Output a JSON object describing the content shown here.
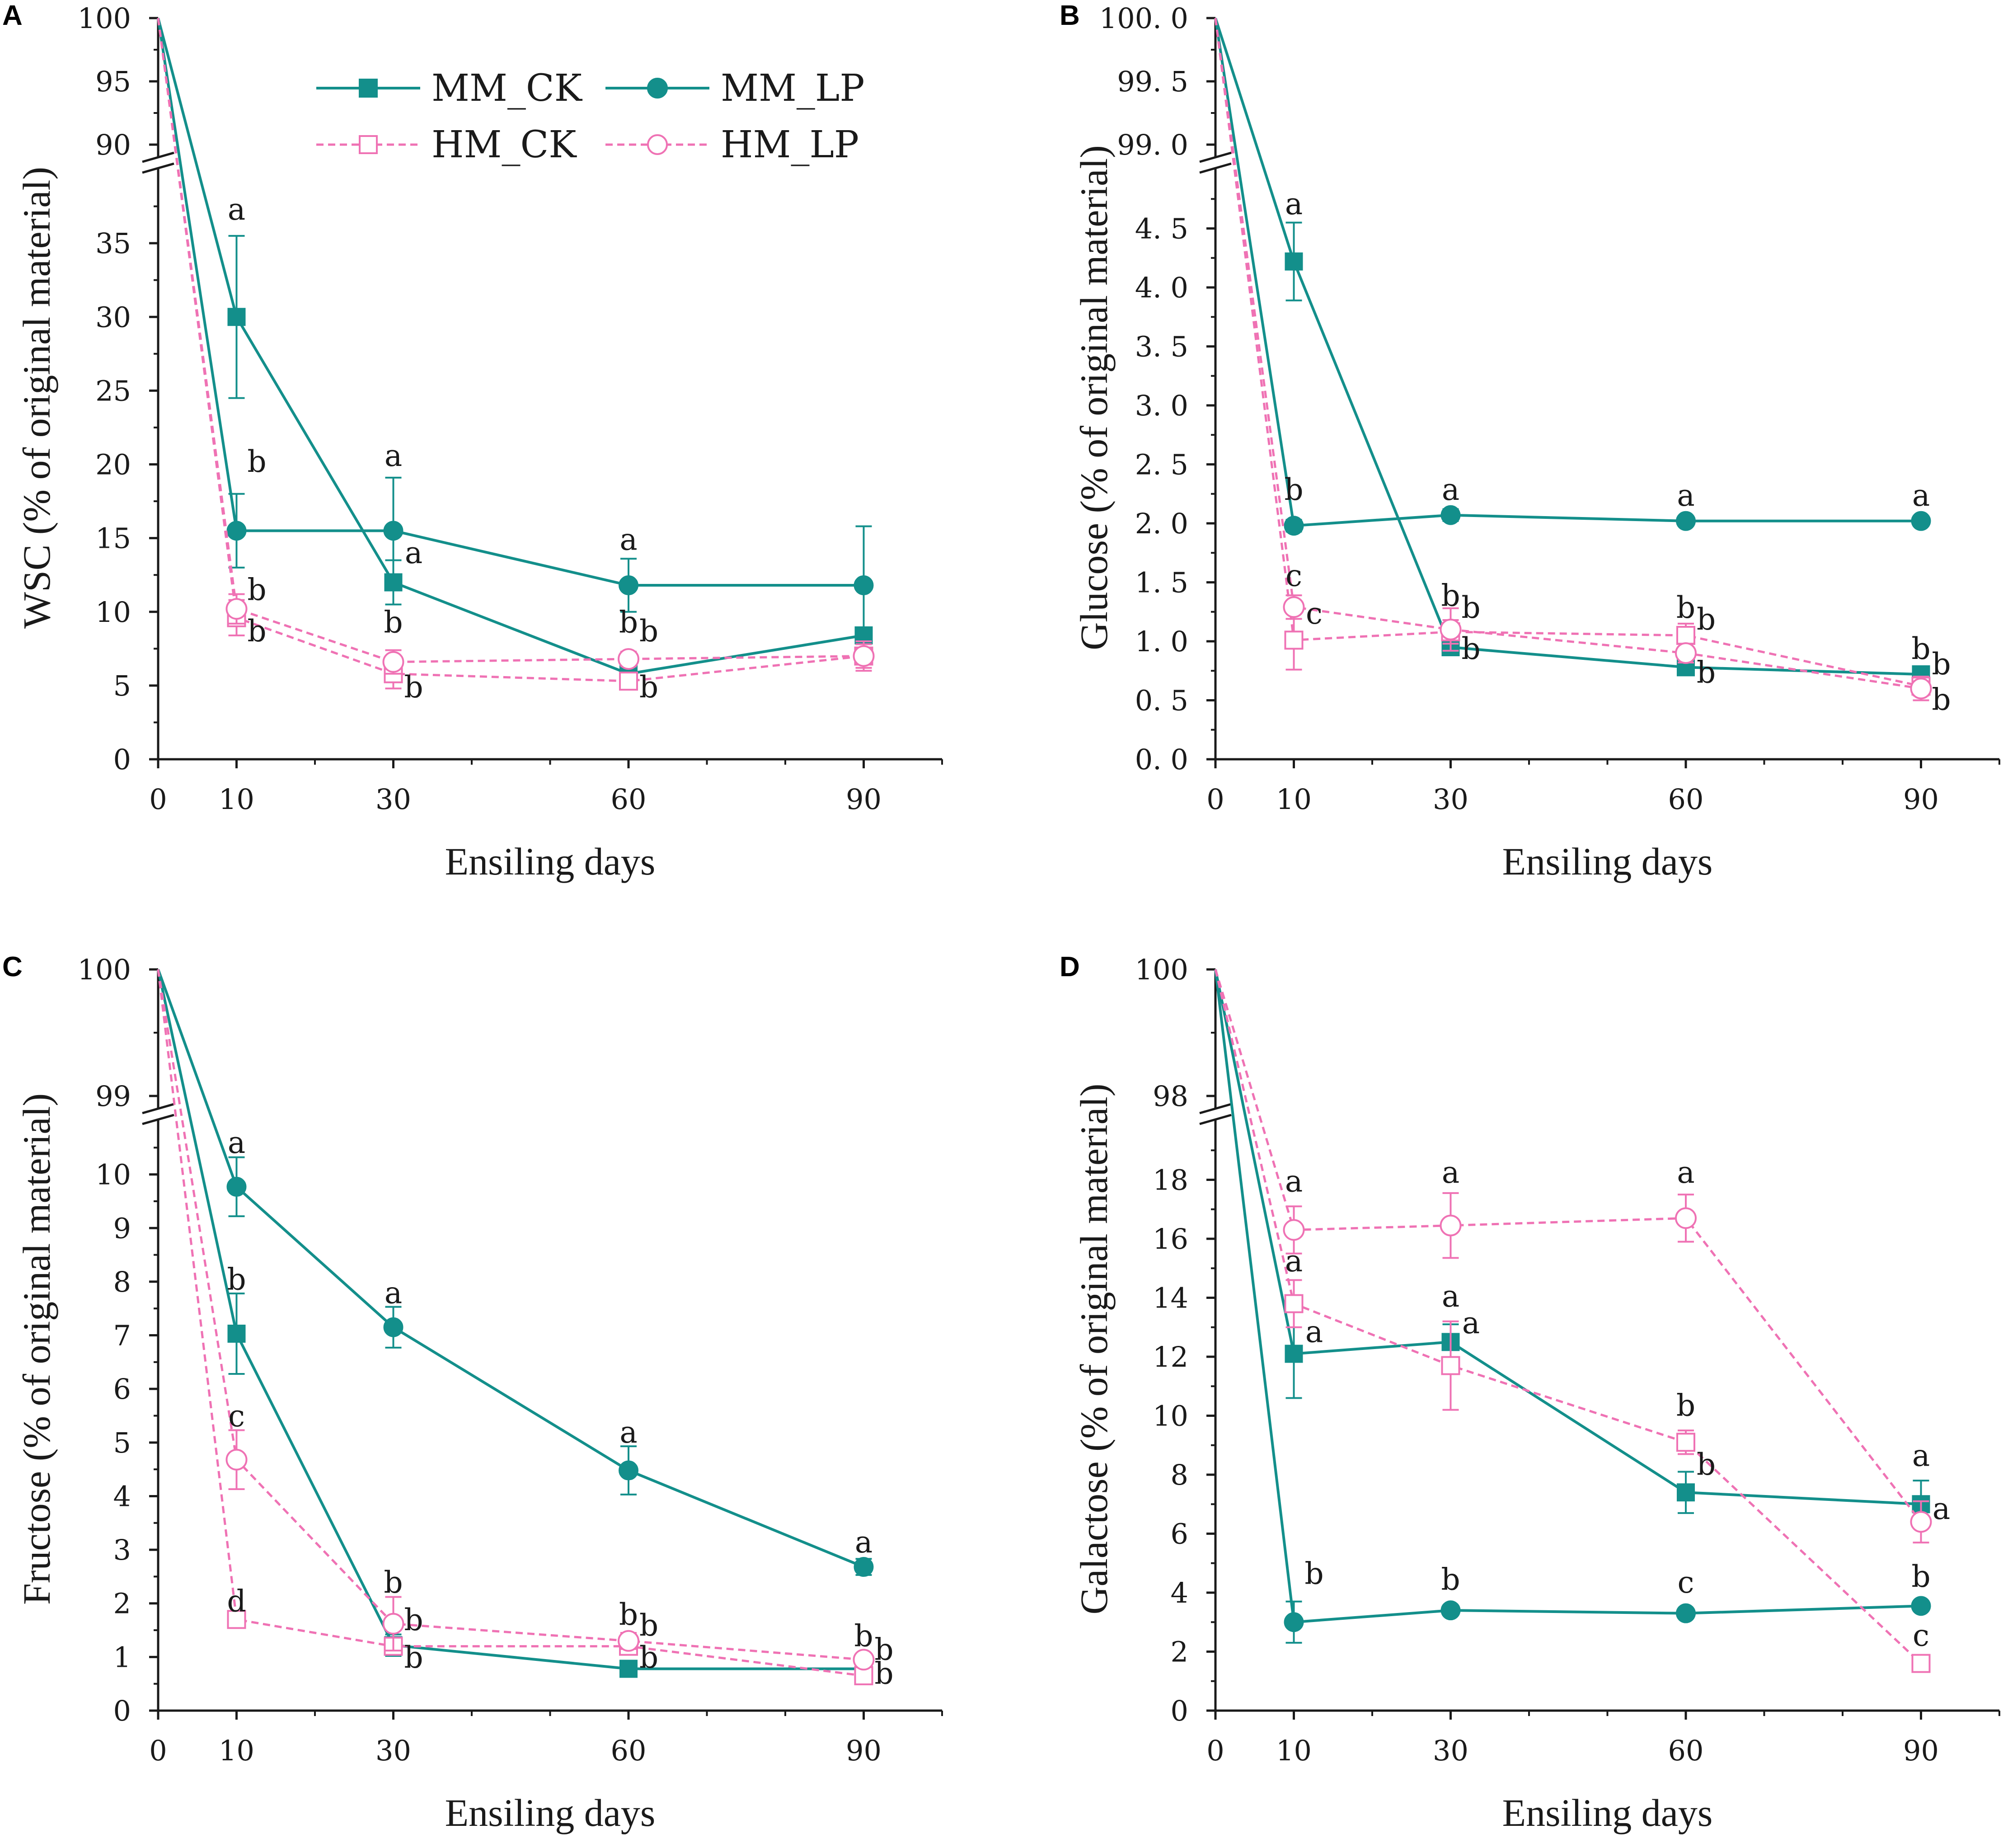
{
  "colors": {
    "mm": "#138f8b",
    "hm": "#ef72b4",
    "axis": "#1a1a1a"
  },
  "legend": [
    {
      "name": "MM_CK",
      "group": "mm",
      "marker": "square-filled"
    },
    {
      "name": "MM_LP",
      "group": "mm",
      "marker": "circle-filled"
    },
    {
      "name": "HM_CK",
      "group": "hm",
      "marker": "square-open"
    },
    {
      "name": "HM_LP",
      "group": "hm",
      "marker": "circle-open"
    }
  ],
  "chart_data": [
    {
      "type": "line",
      "panel": "A",
      "xlabel": "Ensiling days",
      "ylabel": "WSC (% of original material)",
      "x": [
        0,
        10,
        30,
        60,
        90
      ],
      "x_ticks": [
        0,
        10,
        30,
        60,
        90
      ],
      "x_range": [
        0,
        100
      ],
      "y_lower_range": [
        0,
        40
      ],
      "y_lower_ticks": [
        0,
        5,
        10,
        15,
        20,
        25,
        30,
        35
      ],
      "y_upper_range": [
        90,
        100
      ],
      "y_upper_ticks": [
        90,
        95,
        100
      ],
      "tick_decimals": 0,
      "series": [
        {
          "name": "MM_CK",
          "values": [
            100,
            30.0,
            12.0,
            5.8,
            8.4
          ],
          "errors": [
            0,
            5.5,
            1.5,
            0.5,
            0.5
          ]
        },
        {
          "name": "MM_LP",
          "values": [
            100,
            15.5,
            15.5,
            11.8,
            11.8
          ],
          "errors": [
            0,
            2.5,
            3.6,
            1.8,
            4.0
          ]
        },
        {
          "name": "HM_CK",
          "values": [
            100,
            9.6,
            5.8,
            5.3,
            7.0
          ],
          "errors": [
            0,
            1.2,
            1.0,
            0.5,
            1.0
          ]
        },
        {
          "name": "HM_LP",
          "values": [
            100,
            10.2,
            6.6,
            6.8,
            7.0
          ],
          "errors": [
            0,
            1.0,
            0.8,
            0.5,
            0.8
          ]
        }
      ],
      "annotations": [
        {
          "text": "a",
          "x": 10,
          "y": 36.6,
          "pos": "above"
        },
        {
          "text": "b",
          "x": 10,
          "y": 19.5,
          "pos": "right"
        },
        {
          "text": "b",
          "x": 10,
          "y": 10.8,
          "pos": "right"
        },
        {
          "text": "b",
          "x": 10,
          "y": 8.0,
          "pos": "right"
        },
        {
          "text": "a",
          "x": 30,
          "y": 19.9,
          "pos": "above"
        },
        {
          "text": "a",
          "x": 30,
          "y": 13.3,
          "pos": "right"
        },
        {
          "text": "b",
          "x": 30,
          "y": 8.6,
          "pos": "above"
        },
        {
          "text": "b",
          "x": 30,
          "y": 4.2,
          "pos": "right"
        },
        {
          "text": "a",
          "x": 60,
          "y": 14.2,
          "pos": "above"
        },
        {
          "text": "b",
          "x": 60,
          "y": 8.6,
          "pos": "above"
        },
        {
          "text": "b",
          "x": 60,
          "y": 8.0,
          "pos": "right"
        },
        {
          "text": "b",
          "x": 60,
          "y": 4.2,
          "pos": "right"
        }
      ]
    },
    {
      "type": "line",
      "panel": "B",
      "xlabel": "Ensiling days",
      "ylabel": "Glucose (% of original material)",
      "x": [
        0,
        10,
        30,
        60,
        90
      ],
      "x_ticks": [
        0,
        10,
        30,
        60,
        90
      ],
      "x_range": [
        0,
        100
      ],
      "y_lower_range": [
        0,
        5
      ],
      "y_lower_ticks": [
        0.0,
        0.5,
        1.0,
        1.5,
        2.0,
        2.5,
        3.0,
        3.5,
        4.0,
        4.5
      ],
      "y_upper_range": [
        99.0,
        100.0
      ],
      "y_upper_ticks": [
        99.0,
        99.5,
        100.0
      ],
      "tick_decimals": 1,
      "series": [
        {
          "name": "MM_CK",
          "values": [
            100,
            4.22,
            0.95,
            0.78,
            0.72
          ],
          "errors": [
            0,
            0.33,
            0.05,
            0.05,
            0.05
          ]
        },
        {
          "name": "MM_LP",
          "values": [
            100,
            1.98,
            2.07,
            2.02,
            2.02
          ],
          "errors": [
            0,
            0.05,
            0.05,
            0.04,
            0.04
          ]
        },
        {
          "name": "HM_CK",
          "values": [
            100,
            1.01,
            1.08,
            1.05,
            0.62
          ],
          "errors": [
            0,
            0.25,
            0.1,
            0.1,
            0.08
          ]
        },
        {
          "name": "HM_LP",
          "values": [
            100,
            1.29,
            1.1,
            0.9,
            0.6
          ],
          "errors": [
            0,
            0.1,
            0.18,
            0.08,
            0.1
          ]
        }
      ],
      "annotations": [
        {
          "text": "a",
          "x": 10,
          "y": 4.62,
          "pos": "above"
        },
        {
          "text": "b",
          "x": 10,
          "y": 2.2,
          "pos": "above"
        },
        {
          "text": "c",
          "x": 10,
          "y": 1.47,
          "pos": "above"
        },
        {
          "text": "c",
          "x": 10,
          "y": 1.15,
          "pos": "right"
        },
        {
          "text": "a",
          "x": 30,
          "y": 2.2,
          "pos": "above"
        },
        {
          "text": "b",
          "x": 30,
          "y": 1.3,
          "pos": "above"
        },
        {
          "text": "b",
          "x": 30,
          "y": 1.2,
          "pos": "right"
        },
        {
          "text": "b",
          "x": 30,
          "y": 0.85,
          "pos": "right"
        },
        {
          "text": "a",
          "x": 60,
          "y": 2.15,
          "pos": "above"
        },
        {
          "text": "b",
          "x": 60,
          "y": 1.2,
          "pos": "above"
        },
        {
          "text": "b",
          "x": 60,
          "y": 1.1,
          "pos": "right"
        },
        {
          "text": "b",
          "x": 60,
          "y": 0.65,
          "pos": "right"
        },
        {
          "text": "a",
          "x": 90,
          "y": 2.15,
          "pos": "above"
        },
        {
          "text": "b",
          "x": 90,
          "y": 0.85,
          "pos": "above"
        },
        {
          "text": "b",
          "x": 90,
          "y": 0.72,
          "pos": "right"
        },
        {
          "text": "b",
          "x": 90,
          "y": 0.42,
          "pos": "right"
        }
      ]
    },
    {
      "type": "line",
      "panel": "C",
      "xlabel": "Ensiling days",
      "ylabel": "Fructose (% of original material)",
      "x": [
        0,
        10,
        30,
        60,
        90
      ],
      "x_ticks": [
        0,
        10,
        30,
        60,
        90
      ],
      "x_range": [
        0,
        100
      ],
      "y_lower_range": [
        0,
        11
      ],
      "y_lower_ticks": [
        0,
        1,
        2,
        3,
        4,
        5,
        6,
        7,
        8,
        9,
        10
      ],
      "y_upper_range": [
        99,
        100
      ],
      "y_upper_ticks": [
        99,
        100
      ],
      "tick_decimals": 0,
      "series": [
        {
          "name": "MM_CK",
          "values": [
            100,
            7.03,
            1.22,
            0.78,
            0.78
          ],
          "errors": [
            0,
            0.75,
            0.2,
            0.05,
            0.1
          ]
        },
        {
          "name": "MM_LP",
          "values": [
            100,
            9.77,
            7.15,
            4.48,
            2.68
          ],
          "errors": [
            0,
            0.55,
            0.38,
            0.45,
            0.15
          ]
        },
        {
          "name": "HM_CK",
          "values": [
            100,
            1.7,
            1.2,
            1.2,
            0.65
          ],
          "errors": [
            0,
            0.05,
            0.1,
            0.1,
            0.05
          ]
        },
        {
          "name": "HM_LP",
          "values": [
            100,
            4.68,
            1.62,
            1.3,
            0.95
          ],
          "errors": [
            0,
            0.55,
            0.5,
            0.15,
            0.1
          ]
        }
      ],
      "annotations": [
        {
          "text": "a",
          "x": 10,
          "y": 10.4,
          "pos": "above"
        },
        {
          "text": "b",
          "x": 10,
          "y": 7.85,
          "pos": "above"
        },
        {
          "text": "c",
          "x": 10,
          "y": 5.3,
          "pos": "above"
        },
        {
          "text": "d",
          "x": 10,
          "y": 1.85,
          "pos": "above"
        },
        {
          "text": "a",
          "x": 30,
          "y": 7.6,
          "pos": "above"
        },
        {
          "text": "b",
          "x": 30,
          "y": 2.2,
          "pos": "above"
        },
        {
          "text": "b",
          "x": 30,
          "y": 1.5,
          "pos": "right"
        },
        {
          "text": "b",
          "x": 30,
          "y": 0.8,
          "pos": "right"
        },
        {
          "text": "a",
          "x": 60,
          "y": 5.0,
          "pos": "above"
        },
        {
          "text": "b",
          "x": 60,
          "y": 1.6,
          "pos": "above"
        },
        {
          "text": "b",
          "x": 60,
          "y": 1.4,
          "pos": "right"
        },
        {
          "text": "b",
          "x": 60,
          "y": 0.8,
          "pos": "right"
        },
        {
          "text": "a",
          "x": 90,
          "y": 2.95,
          "pos": "above"
        },
        {
          "text": "b",
          "x": 90,
          "y": 1.2,
          "pos": "above"
        },
        {
          "text": "b",
          "x": 90,
          "y": 0.95,
          "pos": "right"
        },
        {
          "text": "b",
          "x": 90,
          "y": 0.5,
          "pos": "right"
        }
      ]
    },
    {
      "type": "line",
      "panel": "D",
      "xlabel": "Ensiling days",
      "ylabel": "Galactose (% of original material)",
      "x": [
        0,
        10,
        30,
        60,
        90
      ],
      "x_ticks": [
        0,
        10,
        30,
        60,
        90
      ],
      "x_range": [
        0,
        100
      ],
      "y_lower_range": [
        0,
        20
      ],
      "y_lower_ticks": [
        0,
        2,
        4,
        6,
        8,
        10,
        12,
        14,
        16,
        18
      ],
      "y_upper_range": [
        98,
        100
      ],
      "y_upper_ticks": [
        98,
        100
      ],
      "tick_decimals": 0,
      "series": [
        {
          "name": "MM_CK",
          "values": [
            100,
            12.1,
            12.5,
            7.4,
            7.0
          ],
          "errors": [
            0,
            1.5,
            0.6,
            0.7,
            0.8
          ]
        },
        {
          "name": "MM_LP",
          "values": [
            100,
            3.0,
            3.4,
            3.3,
            3.55
          ],
          "errors": [
            0,
            0.7,
            0.1,
            0.1,
            0.1
          ]
        },
        {
          "name": "HM_CK",
          "values": [
            100,
            13.8,
            11.7,
            9.1,
            1.6
          ],
          "errors": [
            0,
            0.8,
            1.5,
            0.4,
            0.2
          ]
        },
        {
          "name": "HM_LP",
          "values": [
            100,
            16.3,
            16.45,
            16.7,
            6.4
          ],
          "errors": [
            0,
            0.8,
            1.1,
            0.8,
            0.7
          ]
        }
      ],
      "annotations": [
        {
          "text": "a",
          "x": 10,
          "y": 17.6,
          "pos": "above"
        },
        {
          "text": "a",
          "x": 10,
          "y": 14.9,
          "pos": "above"
        },
        {
          "text": "a",
          "x": 10,
          "y": 12.5,
          "pos": "right"
        },
        {
          "text": "b",
          "x": 10,
          "y": 4.3,
          "pos": "right"
        },
        {
          "text": "a",
          "x": 30,
          "y": 17.9,
          "pos": "above"
        },
        {
          "text": "a",
          "x": 30,
          "y": 13.7,
          "pos": "above"
        },
        {
          "text": "a",
          "x": 30,
          "y": 12.8,
          "pos": "right"
        },
        {
          "text": "b",
          "x": 30,
          "y": 4.1,
          "pos": "above"
        },
        {
          "text": "a",
          "x": 60,
          "y": 17.9,
          "pos": "above"
        },
        {
          "text": "b",
          "x": 60,
          "y": 10.0,
          "pos": "above"
        },
        {
          "text": "b",
          "x": 60,
          "y": 8.0,
          "pos": "right"
        },
        {
          "text": "c",
          "x": 60,
          "y": 4.0,
          "pos": "above"
        },
        {
          "text": "a",
          "x": 90,
          "y": 8.3,
          "pos": "above"
        },
        {
          "text": "a",
          "x": 90,
          "y": 6.5,
          "pos": "right"
        },
        {
          "text": "b",
          "x": 90,
          "y": 4.2,
          "pos": "above"
        },
        {
          "text": "c",
          "x": 90,
          "y": 2.2,
          "pos": "above"
        }
      ]
    }
  ]
}
